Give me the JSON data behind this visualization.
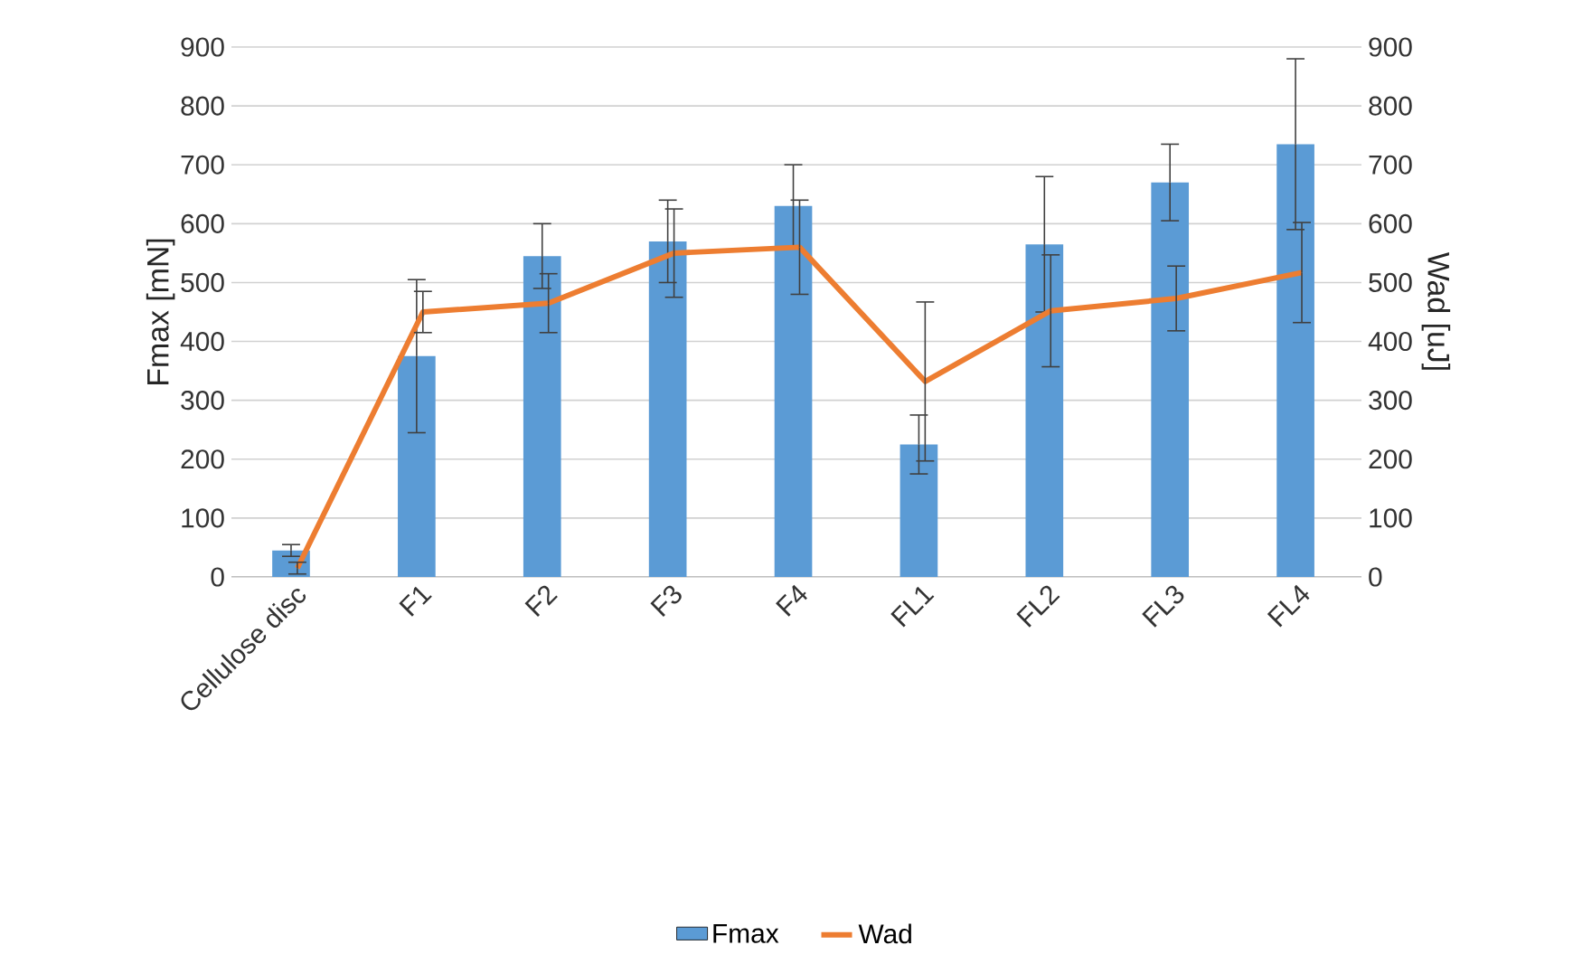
{
  "chart_data": {
    "type": "bar",
    "categories": [
      "Cellulose disc",
      "F1",
      "F2",
      "F3",
      "F4",
      "FL1",
      "FL2",
      "FL3",
      "FL4"
    ],
    "ylabel": "Fmax [mN]",
    "y2label": "Wad [uJ]",
    "ylim": [
      0,
      900
    ],
    "yticks": [
      0,
      100,
      200,
      300,
      400,
      500,
      600,
      700,
      800,
      900
    ],
    "y2lim": [
      0,
      900
    ],
    "y2ticks": [
      0,
      100,
      200,
      300,
      400,
      500,
      600,
      700,
      800,
      900
    ],
    "grid": "y",
    "legend": "bottom",
    "series": [
      {
        "name": "Fmax",
        "color": "#5b9bd5",
        "values": [
          45,
          375,
          545,
          570,
          630,
          225,
          565,
          670,
          735
        ],
        "errors": [
          10,
          130,
          55,
          70,
          70,
          50,
          115,
          65,
          145
        ]
      },
      {
        "name": "Wad",
        "type": "line",
        "axis": "y2",
        "color": "#ed7d31",
        "values": [
          15,
          450,
          465,
          550,
          560,
          332,
          452,
          473,
          517
        ],
        "errors": [
          10,
          35,
          50,
          75,
          80,
          135,
          95,
          55,
          85
        ]
      }
    ]
  }
}
